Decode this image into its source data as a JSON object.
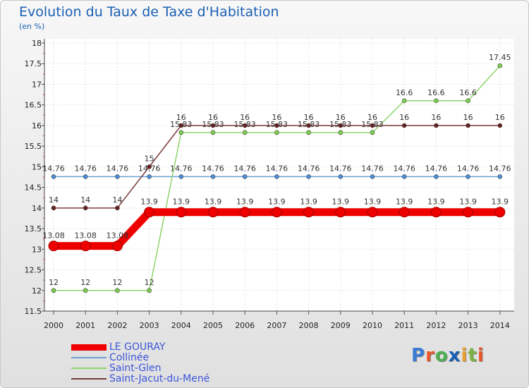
{
  "title": "Evolution du Taux de Taxe d'Habitation",
  "subtitle": "(en %)",
  "logo": {
    "text": "Proxiti",
    "colors": [
      "#3a7bd5",
      "#e8572a",
      "#4caf50",
      "#1a5fb4",
      "#e8a02a",
      "#7cb342",
      "#e8572a"
    ]
  },
  "chart_data": {
    "type": "line",
    "x": [
      "2000",
      "2001",
      "2002",
      "2003",
      "2004",
      "2005",
      "2006",
      "2007",
      "2008",
      "2009",
      "2010",
      "2011",
      "2012",
      "2013",
      "2014"
    ],
    "ylim": [
      11.5,
      18
    ],
    "yticks": [
      "11.5",
      "12",
      "12.5",
      "13",
      "13.5",
      "14",
      "14.5",
      "15",
      "15.5",
      "16",
      "16.5",
      "17",
      "17.5",
      "18"
    ],
    "series": [
      {
        "name": "Collinée",
        "color": "#6a9fd0",
        "marker": "#4a8fd6",
        "values": [
          14.76,
          14.76,
          14.76,
          14.76,
          14.76,
          14.76,
          14.76,
          14.76,
          14.76,
          14.76,
          14.76,
          14.76,
          14.76,
          14.76,
          14.76
        ],
        "labels": [
          "14.76",
          "14.76",
          "14.76",
          "14.76",
          "14.76",
          "14.76",
          "14.76",
          "14.76",
          "14.76",
          "14.76",
          "14.76",
          "14.76",
          "14.76",
          "14.76",
          "14.76"
        ]
      },
      {
        "name": "Saint-Glen",
        "color": "#8fd46a",
        "marker": "#7cd04a",
        "values": [
          12,
          12,
          12,
          12,
          15.83,
          15.83,
          15.83,
          15.83,
          15.83,
          15.83,
          15.83,
          16.6,
          16.6,
          16.6,
          17.45
        ],
        "labels": [
          "12",
          "12",
          "12",
          "12",
          "15.83",
          "15.83",
          "15.83",
          "15.83",
          "15.83",
          "15.83",
          "15.83",
          "16.6",
          "16.6",
          "16.6",
          "17.45"
        ]
      },
      {
        "name": "Saint-Jacut-du-Mené",
        "color": "#7a3a3a",
        "marker": "#6a1f1f",
        "values": [
          14,
          14,
          14,
          15,
          16,
          16,
          16,
          16,
          16,
          16,
          16,
          16,
          16,
          16,
          16
        ],
        "labels": [
          "14",
          "14",
          "14",
          "15",
          "16",
          "16",
          "16",
          "16",
          "16",
          "16",
          "16",
          "16",
          "16",
          "16",
          "16"
        ]
      },
      {
        "name": "LE GOURAY",
        "color": "#ee0000",
        "marker": "#c00000",
        "values": [
          13.08,
          13.08,
          13.08,
          13.9,
          13.9,
          13.9,
          13.9,
          13.9,
          13.9,
          13.9,
          13.9,
          13.9,
          13.9,
          13.9,
          13.9
        ],
        "labels": [
          "13.08",
          "13.08",
          "13.08",
          "13.9",
          "13.9",
          "13.9",
          "13.9",
          "13.9",
          "13.9",
          "13.9",
          "13.9",
          "13.9",
          "13.9",
          "13.9",
          "13.9"
        ],
        "highlight": true
      }
    ],
    "legend": [
      "LE GOURAY",
      "Collinée",
      "Saint-Glen",
      "Saint-Jacut-du-Mené"
    ],
    "legend_position": "bottom-left"
  }
}
